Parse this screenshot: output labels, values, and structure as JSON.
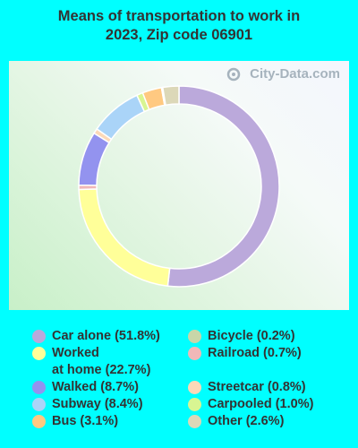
{
  "title": "Means of transportation to work in\n2023, Zip code 06901",
  "watermark": "City-Data.com",
  "chart_data": {
    "type": "pie",
    "title": "Means of transportation to work in 2023, Zip code 06901",
    "donut": true,
    "series": [
      {
        "label": "Car alone (51.8%)",
        "name": "Car alone",
        "value": 51.8,
        "color": "#bba9db"
      },
      {
        "label": "Worked\nat home (22.7%)",
        "name": "Worked at home",
        "value": 22.7,
        "color": "#ffff99"
      },
      {
        "label": "Walked (8.7%)",
        "name": "Walked",
        "value": 8.7,
        "color": "#9393ef"
      },
      {
        "label": "Subway (8.4%)",
        "name": "Subway",
        "value": 8.4,
        "color": "#aad4f8"
      },
      {
        "label": "Bus (3.1%)",
        "name": "Bus",
        "value": 3.1,
        "color": "#ffc981"
      },
      {
        "label": "Bicycle (0.2%)",
        "name": "Bicycle",
        "value": 0.2,
        "color": "#c8d6a8"
      },
      {
        "label": "Railroad (0.7%)",
        "name": "Railroad",
        "value": 0.7,
        "color": "#f0b8b8"
      },
      {
        "label": "Streetcar (0.8%)",
        "name": "Streetcar",
        "value": 0.8,
        "color": "#fcd9b8"
      },
      {
        "label": "Carpooled (1.0%)",
        "name": "Carpooled",
        "value": 1.0,
        "color": "#d8f592"
      },
      {
        "label": "Other (2.6%)",
        "name": "Other",
        "value": 2.6,
        "color": "#dcd8b8"
      }
    ],
    "ring_order": [
      "Car alone",
      "Worked at home",
      "Railroad",
      "Walked",
      "Streetcar",
      "Subway",
      "Carpooled",
      "Bus",
      "Bicycle",
      "Other"
    ]
  }
}
